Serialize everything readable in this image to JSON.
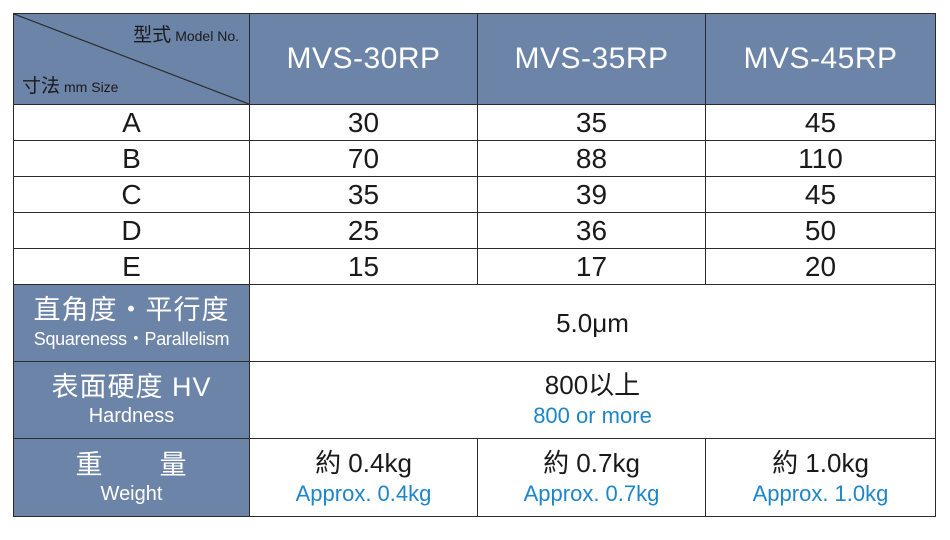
{
  "corner": {
    "model_jp": "型式",
    "model_en": "Model No.",
    "size_jp": "寸法",
    "size_en": "mm Size"
  },
  "models": [
    "MVS-30RP",
    "MVS-35RP",
    "MVS-45RP"
  ],
  "dimensions": [
    {
      "label": "A",
      "values": [
        "30",
        "35",
        "45"
      ]
    },
    {
      "label": "B",
      "values": [
        "70",
        "88",
        "110"
      ]
    },
    {
      "label": "C",
      "values": [
        "35",
        "39",
        "45"
      ]
    },
    {
      "label": "D",
      "values": [
        "25",
        "36",
        "50"
      ]
    },
    {
      "label": "E",
      "values": [
        "15",
        "17",
        "20"
      ]
    }
  ],
  "squareness": {
    "label_jp": "直角度・平行度",
    "label_en": "Squareness・Parallelism",
    "value": "5.0μm"
  },
  "hardness": {
    "label_jp": "表面硬度 HV",
    "label_en": "Hardness",
    "value_jp": "800以上",
    "value_en": "800 or more"
  },
  "weight": {
    "label_jp": "重　　量",
    "label_en": "Weight",
    "values_jp": [
      "約 0.4kg",
      "約 0.7kg",
      "約 1.0kg"
    ],
    "values_en": [
      "Approx. 0.4kg",
      "Approx. 0.7kg",
      "Approx. 1.0kg"
    ]
  },
  "colors": {
    "header_bg": "#6c84a8",
    "english_accent": "#1e86c8",
    "border": "#2b2b2b"
  }
}
